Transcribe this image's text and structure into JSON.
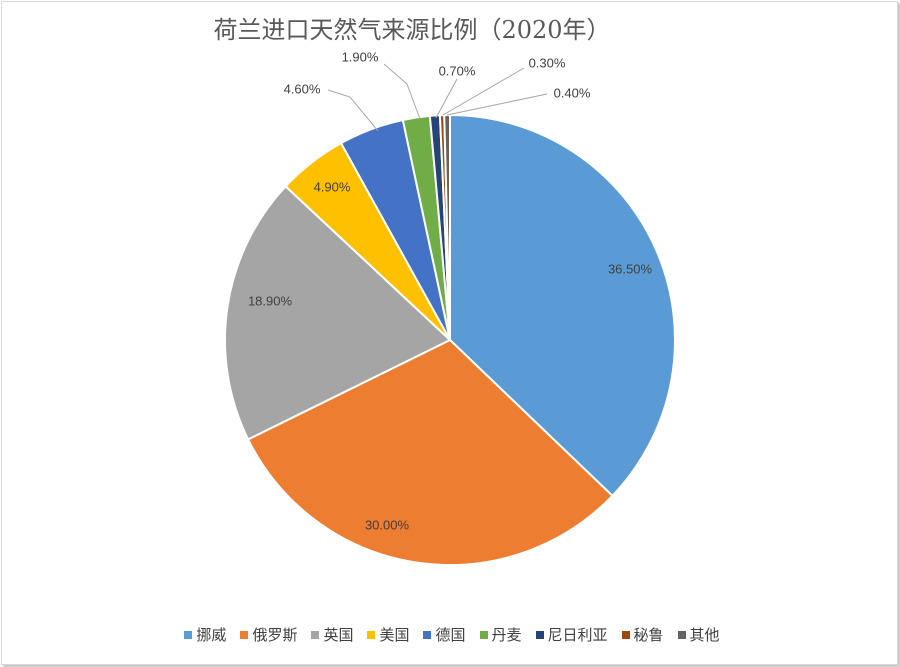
{
  "chart_data": {
    "type": "pie",
    "title": "荷兰进口天然气来源比例（2020年）",
    "categories": [
      "挪威",
      "俄罗斯",
      "英国",
      "美国",
      "德国",
      "丹麦",
      "尼日利亚",
      "秘鲁",
      "其他"
    ],
    "values": [
      36.5,
      30.0,
      18.9,
      4.9,
      4.6,
      1.9,
      0.7,
      0.3,
      0.4
    ],
    "labels": [
      "36.50%",
      "30.00%",
      "18.90%",
      "4.90%",
      "4.60%",
      "1.90%",
      "0.70%",
      "0.30%",
      "0.40%"
    ],
    "colors": [
      "#5b9bd5",
      "#ed7d31",
      "#a5a5a5",
      "#ffc000",
      "#4472c4",
      "#70ad47",
      "#264478",
      "#9e480e",
      "#636363"
    ],
    "legend_position": "bottom"
  }
}
